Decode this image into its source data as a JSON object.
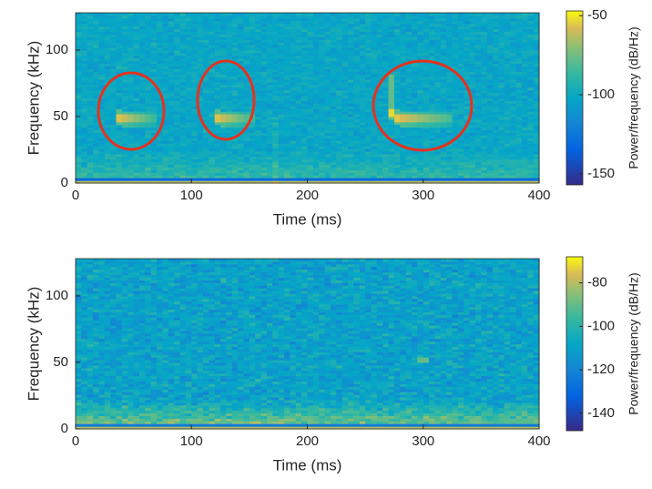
{
  "chart_data": [
    {
      "type": "spectrogram",
      "xlabel": "Time (ms)",
      "ylabel": "Frequency (kHz)",
      "colorbar_label": "Power/frequency (dB/Hz)",
      "xlim": [
        0,
        400
      ],
      "xticks": [
        0,
        100,
        200,
        300,
        400
      ],
      "ylim": [
        0,
        128
      ],
      "yticks": [
        0,
        50,
        100
      ],
      "clim": [
        -157,
        -47
      ],
      "cticks": [
        -150,
        -100,
        -50
      ],
      "colormap": "parula",
      "annotation_color": "#e4321d"
    },
    {
      "type": "spectrogram",
      "xlabel": "Time (ms)",
      "ylabel": "Frequency (kHz)",
      "colorbar_label": "Power/frequency (dB/Hz)",
      "xlim": [
        0,
        400
      ],
      "xticks": [
        0,
        100,
        200,
        300,
        400
      ],
      "ylim": [
        0,
        128
      ],
      "yticks": [
        0,
        50,
        100
      ],
      "clim": [
        -148,
        -68
      ],
      "cticks": [
        -140,
        -120,
        -100,
        -80
      ],
      "colormap": "parula"
    }
  ]
}
